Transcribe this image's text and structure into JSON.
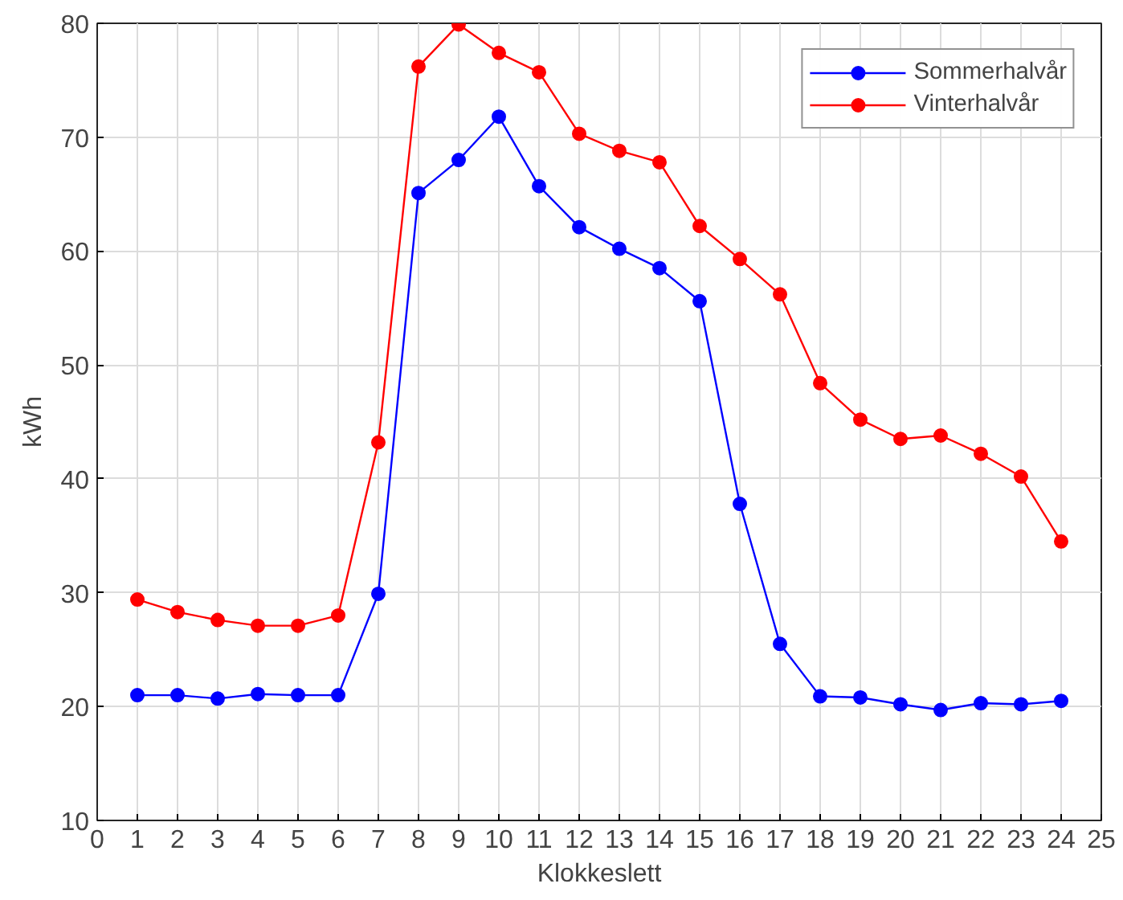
{
  "chart_data": {
    "type": "line",
    "xlabel": "Klokkeslett",
    "ylabel": "kWh",
    "x": [
      1,
      2,
      3,
      4,
      5,
      6,
      7,
      8,
      9,
      10,
      11,
      12,
      13,
      14,
      15,
      16,
      17,
      18,
      19,
      20,
      21,
      22,
      23,
      24
    ],
    "series": [
      {
        "name": "Sommerhalvår",
        "color": "#0000ff",
        "values": [
          21.0,
          21.0,
          20.7,
          21.1,
          21.0,
          21.0,
          29.9,
          65.1,
          68.0,
          71.8,
          65.7,
          62.1,
          60.2,
          58.5,
          55.6,
          37.8,
          25.5,
          20.9,
          20.8,
          20.2,
          19.7,
          20.3,
          20.2,
          20.5
        ]
      },
      {
        "name": "Vinterhalvår",
        "color": "#ff0000",
        "values": [
          29.4,
          28.3,
          27.6,
          27.1,
          27.1,
          28.0,
          43.2,
          76.2,
          79.9,
          77.4,
          75.7,
          70.3,
          68.8,
          67.8,
          62.2,
          59.3,
          56.2,
          48.4,
          45.2,
          43.5,
          43.8,
          42.2,
          40.2,
          34.5
        ]
      }
    ],
    "xlim": [
      0,
      25
    ],
    "xticks": [
      0,
      1,
      2,
      3,
      4,
      5,
      6,
      7,
      8,
      9,
      10,
      11,
      12,
      13,
      14,
      15,
      16,
      17,
      18,
      19,
      20,
      21,
      22,
      23,
      24,
      25
    ],
    "ylim": [
      10,
      80
    ],
    "yticks": [
      10,
      20,
      30,
      40,
      50,
      60,
      70,
      80
    ],
    "grid": true,
    "legend": "top right",
    "marker": "circle",
    "line_style": "solid"
  }
}
